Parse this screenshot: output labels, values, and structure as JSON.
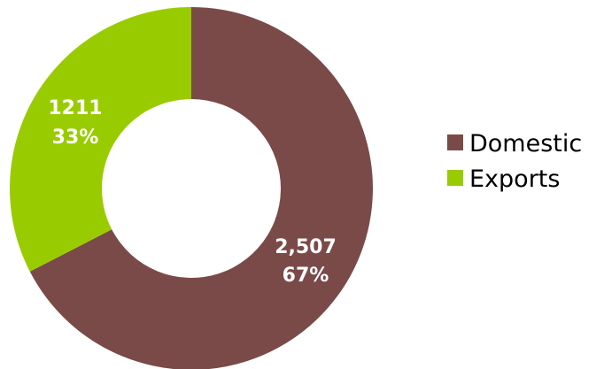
{
  "chart_data": {
    "type": "pie",
    "style": "donut",
    "categories": [
      "Domestic",
      "Exports"
    ],
    "values": [
      2507,
      1211
    ],
    "percentages": [
      67,
      33
    ],
    "value_labels": [
      "2,507",
      "1211"
    ],
    "percent_labels": [
      "67%",
      "33%"
    ],
    "colors": [
      "#7a4a48",
      "#99cc00"
    ],
    "legend": "right",
    "title": ""
  }
}
